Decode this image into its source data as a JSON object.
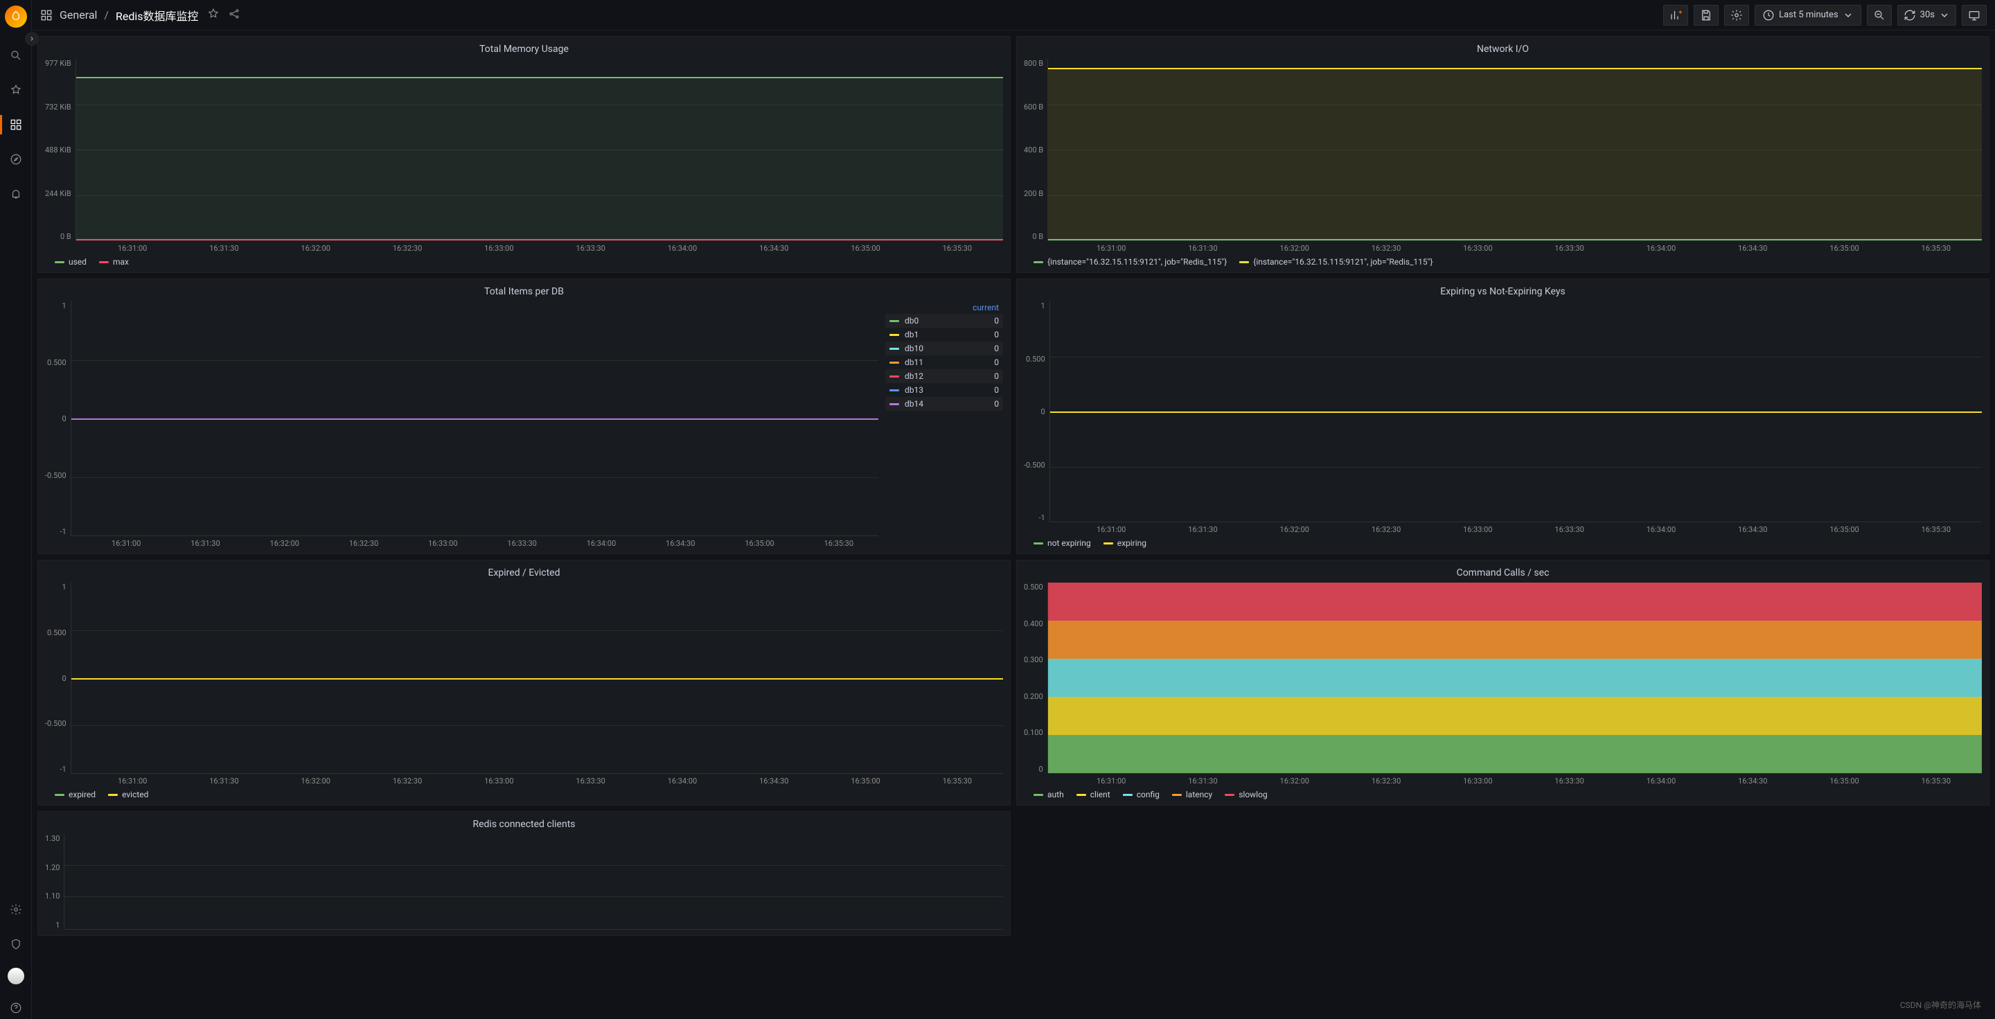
{
  "breadcrumb": {
    "folder": "General",
    "title": "Redis数据库监控"
  },
  "topbar": {
    "time_range": "Last 5 minutes",
    "refresh": "30s"
  },
  "x_ticks": [
    "16:31:00",
    "16:31:30",
    "16:32:00",
    "16:32:30",
    "16:33:00",
    "16:33:30",
    "16:34:00",
    "16:34:30",
    "16:35:00",
    "16:35:30"
  ],
  "colors": {
    "green": "#73bf69",
    "red": "#f2495c",
    "yellow": "#fade2a",
    "blue": "#5794f2",
    "orange": "#ff9830",
    "cyan": "#73e5e5",
    "magenta": "#b877d9",
    "grid": "#2c2c2c",
    "text_muted": "#8e8e8e"
  },
  "panels": {
    "memory": {
      "title": "Total Memory Usage",
      "y_ticks": [
        "977 KiB",
        "732 KiB",
        "488 KiB",
        "244 KiB",
        "0 B"
      ],
      "series": [
        {
          "name": "used",
          "color": "#73bf69",
          "value_line_pct": 10
        },
        {
          "name": "max",
          "color": "#f2495c",
          "value_line_pct": 99
        }
      ]
    },
    "network": {
      "title": "Network I/O",
      "y_ticks": [
        "800 B",
        "600 B",
        "400 B",
        "200 B",
        "0 B"
      ],
      "series": [
        {
          "name": "{instance=\"16.32.15.115:9121\", job=\"Redis_115\"}",
          "color": "#73bf69",
          "value_line_pct": 5,
          "fill": "rgba(115,191,105,0.12)"
        },
        {
          "name": "{instance=\"16.32.15.115:9121\", job=\"Redis_115\"}",
          "color": "#fade2a",
          "value_line_pct": 99,
          "fill": "rgba(250,222,42,0.10)"
        }
      ]
    },
    "items_per_db": {
      "title": "Total Items per DB",
      "y_ticks": [
        "1",
        "0.500",
        "0",
        "-0.500",
        "-1"
      ],
      "legend_header": "current",
      "dbs": [
        {
          "name": "db0",
          "color": "#73bf69",
          "v": 0
        },
        {
          "name": "db1",
          "color": "#fade2a",
          "v": 0
        },
        {
          "name": "db10",
          "color": "#73e5e5",
          "v": 0
        },
        {
          "name": "db11",
          "color": "#ff9830",
          "v": 0
        },
        {
          "name": "db12",
          "color": "#f2495c",
          "v": 0
        },
        {
          "name": "db13",
          "color": "#5794f2",
          "v": 0
        },
        {
          "name": "db14",
          "color": "#b877d9",
          "v": 0
        }
      ]
    },
    "expiring": {
      "title": "Expiring vs Not-Expiring Keys",
      "y_ticks": [
        "1",
        "0.500",
        "0",
        "-0.500",
        "-1"
      ],
      "series": [
        {
          "name": "not expiring",
          "color": "#73bf69"
        },
        {
          "name": "expiring",
          "color": "#fade2a"
        }
      ]
    },
    "expired_evicted": {
      "title": "Expired / Evicted",
      "y_ticks": [
        "1",
        "0.500",
        "0",
        "-0.500",
        "-1"
      ],
      "series": [
        {
          "name": "expired",
          "color": "#73bf69"
        },
        {
          "name": "evicted",
          "color": "#fade2a"
        }
      ]
    },
    "command_calls": {
      "title": "Command Calls / sec",
      "y_ticks": [
        "0.500",
        "0.400",
        "0.300",
        "0.200",
        "0.100",
        "0"
      ],
      "stacks": [
        {
          "name": "auth",
          "color": "#73bf69",
          "h": 0.1
        },
        {
          "name": "client",
          "color": "#fade2a",
          "h": 0.1
        },
        {
          "name": "config",
          "color": "#73e5e5",
          "h": 0.1
        },
        {
          "name": "latency",
          "color": "#ff9830",
          "h": 0.1
        },
        {
          "name": "slowlog",
          "color": "#f2495c",
          "h": 0.1
        }
      ]
    },
    "connected_clients": {
      "title": "Redis connected clients",
      "y_ticks": [
        "1.30",
        "1.20",
        "1.10",
        "1"
      ]
    }
  },
  "watermark": "CSDN @神奇的海马体"
}
